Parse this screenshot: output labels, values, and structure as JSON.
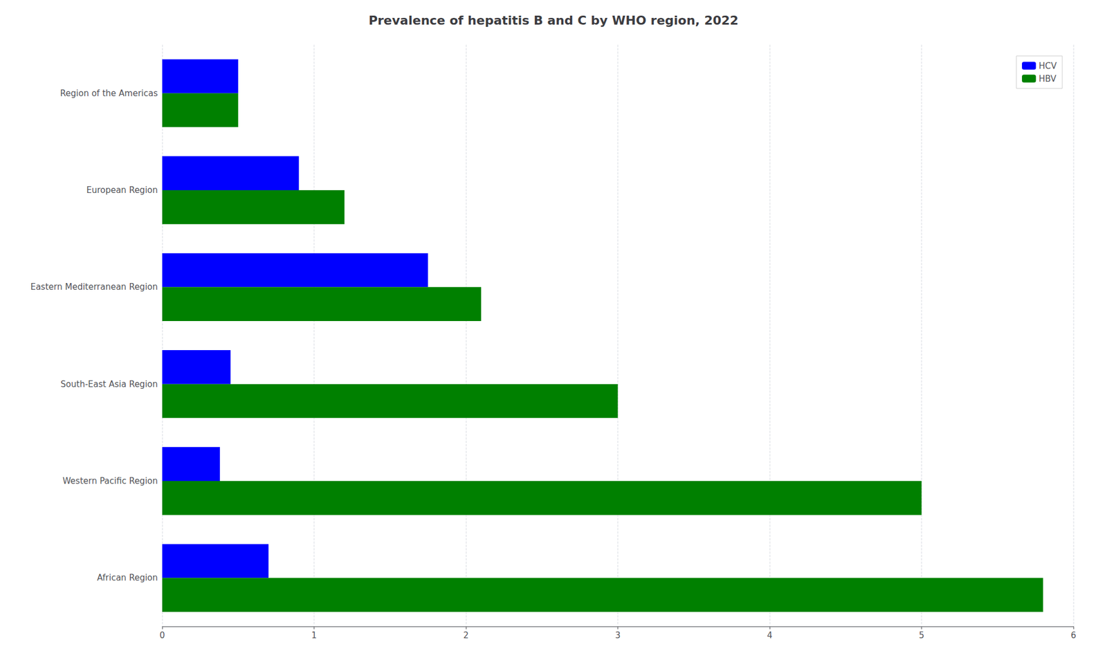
{
  "chart_data": {
    "type": "bar",
    "orientation": "horizontal",
    "title": "Prevalence of hepatitis B and C by WHO region, 2022",
    "categories": [
      "Region of the Americas",
      "European Region",
      "Eastern Mediterranean Region",
      "South-East Asia Region",
      "Western Pacific Region",
      "African Region"
    ],
    "series": [
      {
        "name": "HBV",
        "color": "#008000",
        "values": [
          0.5,
          1.2,
          2.1,
          3.0,
          5.0,
          5.8
        ]
      },
      {
        "name": "HCV",
        "color": "#0000ff",
        "values": [
          0.5,
          0.9,
          1.75,
          0.45,
          0.38,
          0.7
        ]
      }
    ],
    "xlim": [
      0,
      6
    ],
    "xticks": [
      0,
      1,
      2,
      3,
      4,
      5,
      6
    ],
    "grid": true,
    "legend": "upper right"
  }
}
